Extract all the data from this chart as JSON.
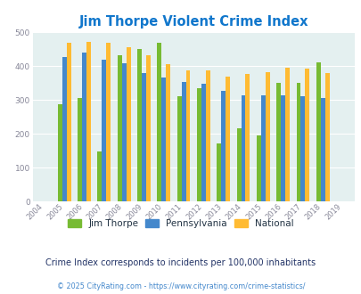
{
  "title": "Jim Thorpe Violent Crime Index",
  "years": [
    2004,
    2005,
    2006,
    2007,
    2008,
    2009,
    2010,
    2011,
    2012,
    2013,
    2014,
    2015,
    2016,
    2017,
    2018,
    2019
  ],
  "jim_thorpe": [
    null,
    288,
    307,
    147,
    433,
    452,
    469,
    311,
    335,
    171,
    216,
    196,
    350,
    350,
    411,
    null
  ],
  "pennsylvania": [
    null,
    426,
    441,
    418,
    409,
    379,
    366,
    354,
    349,
    328,
    315,
    315,
    315,
    311,
    305,
    null
  ],
  "national": [
    null,
    469,
    473,
    469,
    457,
    431,
    405,
    387,
    387,
    368,
    376,
    383,
    395,
    394,
    379,
    null
  ],
  "color_jim": "#77bb33",
  "color_penn": "#4488cc",
  "color_national": "#ffbb33",
  "bg_color": "#e4f0f0",
  "title_color": "#1177cc",
  "ylabel_max": 500,
  "ylabel_step": 100,
  "subtitle": "Crime Index corresponds to incidents per 100,000 inhabitants",
  "footer": "© 2025 CityRating.com - https://www.cityrating.com/crime-statistics/",
  "subtitle_color": "#223366",
  "footer_color": "#4488cc",
  "legend_text_color": "#223344",
  "tick_color": "#888899",
  "grid_color": "#ffffff"
}
